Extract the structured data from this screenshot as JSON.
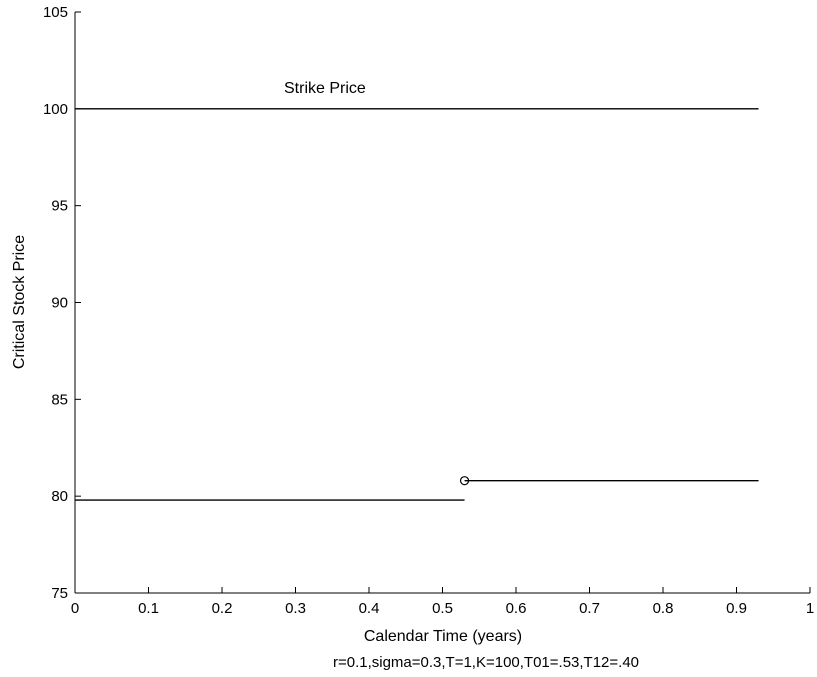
{
  "chart_data": {
    "type": "line",
    "title": "",
    "xlabel": "Calendar Time (years)",
    "ylabel": "Critical Stock Price",
    "caption": "r=0.1,sigma=0.3,T=1,K=100,T01=.53,T12=.40",
    "xlim": [
      0,
      1
    ],
    "ylim": [
      75,
      105
    ],
    "xticks": [
      0,
      0.1,
      0.2,
      0.3,
      0.4,
      0.5,
      0.6,
      0.7,
      0.8,
      0.9,
      1
    ],
    "xtick_labels": [
      "0",
      "0.1",
      "0.2",
      "0.3",
      "0.4",
      "0.5",
      "0.6",
      "0.7",
      "0.8",
      "0.9",
      "1"
    ],
    "yticks": [
      75,
      80,
      85,
      90,
      95,
      100,
      105
    ],
    "ytick_labels": [
      "75",
      "80",
      "85",
      "90",
      "95",
      "100",
      "105"
    ],
    "grid": false,
    "series": [
      {
        "name": "",
        "x": [
          0,
          0.93
        ],
        "y": [
          100,
          100
        ]
      },
      {
        "name": "",
        "x": [
          0,
          0.53
        ],
        "y": [
          79.8,
          79.8
        ]
      },
      {
        "name": "",
        "x": [
          0.53,
          0.93
        ],
        "y": [
          80.8,
          80.8
        ]
      }
    ],
    "markers": [
      {
        "x": 0.53,
        "y": 80.8,
        "shape": "circle"
      }
    ],
    "annotations": [
      {
        "text": "Strike Price",
        "x": 0.34,
        "y": 100.5
      }
    ]
  }
}
